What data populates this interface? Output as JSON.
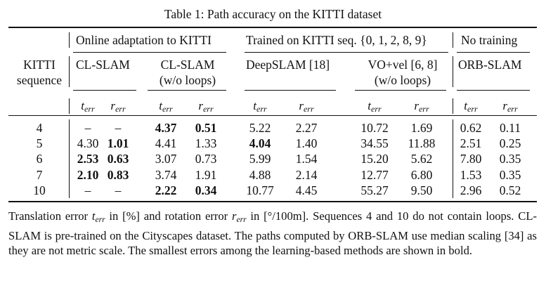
{
  "caption": "Table 1: Path accuracy on the KITTI dataset",
  "groups": {
    "online": "Online adaptation to KITTI",
    "trained": "Trained on KITTI seq. {0, 1, 2, 8, 9}",
    "none": "No training"
  },
  "row_header": [
    "KITTI",
    "sequence"
  ],
  "methods": {
    "clslam": "CL-SLAM",
    "clslam_noloop": [
      "CL-SLAM",
      "(w/o loops)"
    ],
    "deepslam": "DeepSLAM [18]",
    "vovel": [
      "VO+vel [6, 8]",
      "(w/o loops)"
    ],
    "orbslam": "ORB-SLAM"
  },
  "metric_symbols": {
    "t": {
      "base": "t",
      "sub": "err"
    },
    "r": {
      "base": "r",
      "sub": "err"
    }
  },
  "rows": [
    {
      "seq": "4",
      "cells": [
        "–",
        "–",
        "4.37",
        "0.51",
        "5.22",
        "2.27",
        "10.72",
        "1.69",
        "0.62",
        "0.11"
      ],
      "bold": [
        2,
        3
      ]
    },
    {
      "seq": "5",
      "cells": [
        "4.30",
        "1.01",
        "4.41",
        "1.33",
        "4.04",
        "1.40",
        "34.55",
        "11.88",
        "2.51",
        "0.25"
      ],
      "bold": [
        1,
        4
      ]
    },
    {
      "seq": "6",
      "cells": [
        "2.53",
        "0.63",
        "3.07",
        "0.73",
        "5.99",
        "1.54",
        "15.20",
        "5.62",
        "7.80",
        "0.35"
      ],
      "bold": [
        0,
        1
      ]
    },
    {
      "seq": "7",
      "cells": [
        "2.10",
        "0.83",
        "3.74",
        "1.91",
        "4.88",
        "2.14",
        "12.77",
        "6.80",
        "1.53",
        "0.35"
      ],
      "bold": [
        0,
        1
      ]
    },
    {
      "seq": "10",
      "cells": [
        "–",
        "–",
        "2.22",
        "0.34",
        "10.77",
        "4.45",
        "55.27",
        "9.50",
        "2.96",
        "0.52"
      ],
      "bold": [
        2,
        3
      ]
    }
  ],
  "note": {
    "s1a": "Translation error ",
    "s1b": " in [%] and rotation error ",
    "s1c": " in [°/100m]. Sequences 4 and 10 do not contain loops. CL-SLAM is pre-trained on the Cityscapes dataset. The paths computed by ORB-SLAM use median scaling [34] as they are not metric scale. The smallest errors among the learning-based methods are shown in bold."
  }
}
